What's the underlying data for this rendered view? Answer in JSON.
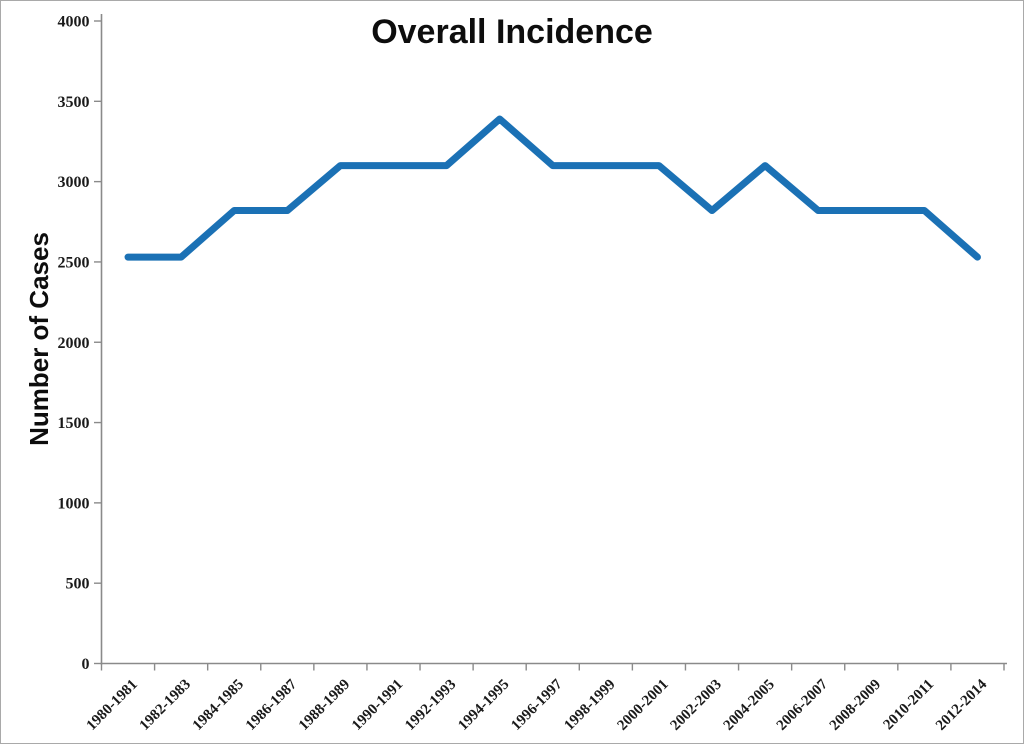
{
  "chart_data": {
    "type": "line",
    "title": "Overall Incidence",
    "xlabel": "",
    "ylabel": "Number of Cases",
    "categories": [
      "1980-1981",
      "1982-1983",
      "1984-1985",
      "1986-1987",
      "1988-1989",
      "1990-1991",
      "1992-1993",
      "1994-1995",
      "1996-1997",
      "1998-1999",
      "2000-2001",
      "2002-2003",
      "2004-2005",
      "2006-2007",
      "2008-2009",
      "2010-2011",
      "2012-2014"
    ],
    "values": [
      2530,
      2530,
      2820,
      2820,
      3100,
      3100,
      3100,
      3390,
      3100,
      3100,
      3100,
      2820,
      3100,
      2820,
      2820,
      2820,
      2530
    ],
    "ylim": [
      0,
      4000
    ],
    "yticks": [
      0,
      500,
      1000,
      1500,
      2000,
      2500,
      3000,
      3500,
      4000
    ],
    "grid": false,
    "legend": "none",
    "x_label_rotation_deg": -45,
    "colors": {
      "line": "#1B71B5",
      "axis": "#8a8a8a",
      "tick_label": "#1a1a1a",
      "title": "#0d0d0d",
      "background": "#ffffff"
    }
  }
}
